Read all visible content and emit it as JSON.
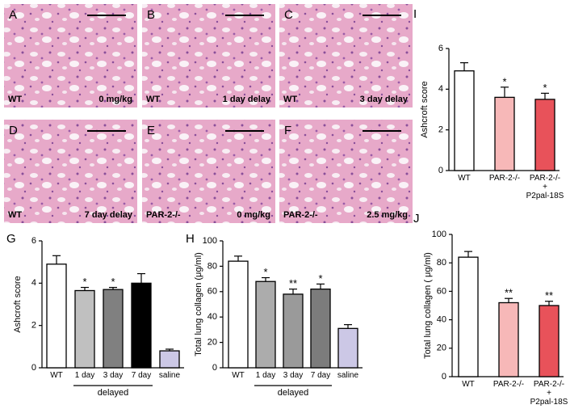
{
  "images": [
    {
      "letter": "A",
      "genotype": "WT",
      "condition": "0 mg/kg"
    },
    {
      "letter": "B",
      "genotype": "WT",
      "condition": "1 day delay"
    },
    {
      "letter": "C",
      "genotype": "WT",
      "condition": "3 day delay"
    },
    {
      "letter": "D",
      "genotype": "WT",
      "condition": "7 day delay"
    },
    {
      "letter": "E",
      "genotype": "PAR-2-/-",
      "condition": "0 mg/kg"
    },
    {
      "letter": "F",
      "genotype": "PAR-2-/-",
      "condition": "2.5 mg/kg"
    }
  ],
  "chart_data": [
    {
      "type": "bar",
      "panel": "G",
      "ylabel": "Ashcroft score",
      "categories": [
        "WT",
        "1 day",
        "3 day",
        "7 day",
        "saline"
      ],
      "values": [
        4.9,
        3.65,
        3.7,
        4.0,
        0.8
      ],
      "errors": [
        0.4,
        0.15,
        0.1,
        0.45,
        0.08
      ],
      "colors": [
        "#ffffff",
        "#c0c0c0",
        "#808080",
        "#000000",
        "#ccc8e6"
      ],
      "annotations": [
        null,
        "*",
        "*",
        null,
        null
      ],
      "group_label": "delayed",
      "ylim": [
        0,
        6
      ],
      "yticks": [
        0,
        2,
        4,
        6
      ]
    },
    {
      "type": "bar",
      "panel": "H",
      "ylabel": "Total lung collagen (μg/ml)",
      "categories": [
        "WT",
        "1 day",
        "3 day",
        "7 day",
        "saline"
      ],
      "values": [
        84,
        68,
        58,
        62,
        31
      ],
      "errors": [
        4,
        3,
        4,
        4,
        3
      ],
      "colors": [
        "#ffffff",
        "#acacac",
        "#9a9a9a",
        "#7c7c7c",
        "#ccc8e6"
      ],
      "annotations": [
        null,
        "*",
        "**",
        "*",
        null
      ],
      "group_label": "delayed",
      "ylim": [
        0,
        100
      ],
      "yticks": [
        0,
        20,
        40,
        60,
        80,
        100
      ]
    },
    {
      "type": "bar",
      "panel": "I",
      "ylabel": "Ashcroft score",
      "categories": [
        "WT",
        "PAR-2-/-",
        "PAR-2-/-\n+\nP2pal-18S"
      ],
      "values": [
        4.9,
        3.6,
        3.5
      ],
      "errors": [
        0.4,
        0.5,
        0.3
      ],
      "colors": [
        "#ffffff",
        "#f7b8b8",
        "#e8525a"
      ],
      "annotations": [
        null,
        "*",
        "*"
      ],
      "ylim": [
        0,
        6
      ],
      "yticks": [
        0,
        2,
        4,
        6
      ]
    },
    {
      "type": "bar",
      "panel": "J",
      "ylabel": "Total lung collagen ( μg/ml)",
      "categories": [
        "WT",
        "PAR-2-/-",
        "PAR-2-/-\n+\nP2pal-18S"
      ],
      "values": [
        84,
        52,
        50
      ],
      "errors": [
        4,
        3,
        3
      ],
      "colors": [
        "#ffffff",
        "#f7b8b8",
        "#e8525a"
      ],
      "annotations": [
        null,
        "**",
        "**"
      ],
      "ylim": [
        0,
        100
      ],
      "yticks": [
        0,
        20,
        40,
        60,
        80,
        100
      ]
    }
  ]
}
